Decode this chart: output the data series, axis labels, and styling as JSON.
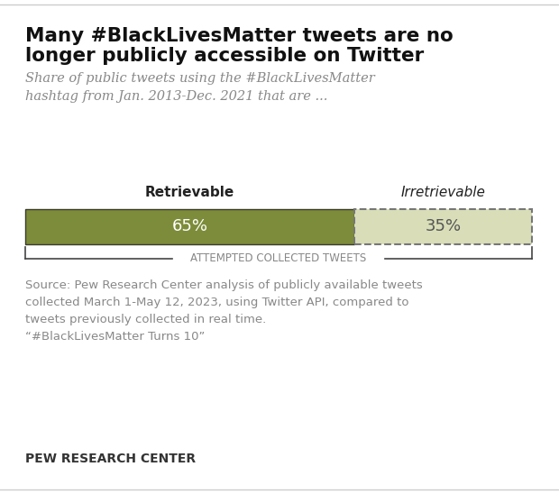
{
  "title_line1": "Many #BlackLivesMatter tweets are no",
  "title_line2": "longer publicly accessible on Twitter",
  "subtitle": "Share of public tweets using the #BlackLivesMatter\nhashtag from Jan. 2013-Dec. 2021 that are ...",
  "retrievable_pct": 65,
  "irretrievable_pct": 35,
  "retrievable_label": "Retrievable",
  "irretrievable_label": "Irretrievable",
  "retrievable_color": "#7d8c3a",
  "irretrievable_color": "#d9deb9",
  "bar_label_color_left": "#ffffff",
  "bar_label_color_right": "#555555",
  "bracket_label": "ATTEMPTED COLLECTED TWEETS",
  "source_text": "Source: Pew Research Center analysis of publicly available tweets\ncollected March 1-May 12, 2023, using Twitter API, compared to\ntweets previously collected in real time.\n“#BlackLivesMatter Turns 10”",
  "footer": "PEW RESEARCH CENTER",
  "background_color": "#ffffff",
  "title_fontsize": 15.5,
  "subtitle_fontsize": 10.5,
  "bar_label_fontsize": 13,
  "source_fontsize": 9.5,
  "footer_fontsize": 10,
  "bracket_fontsize": 8.5,
  "header_fontsize": 11
}
